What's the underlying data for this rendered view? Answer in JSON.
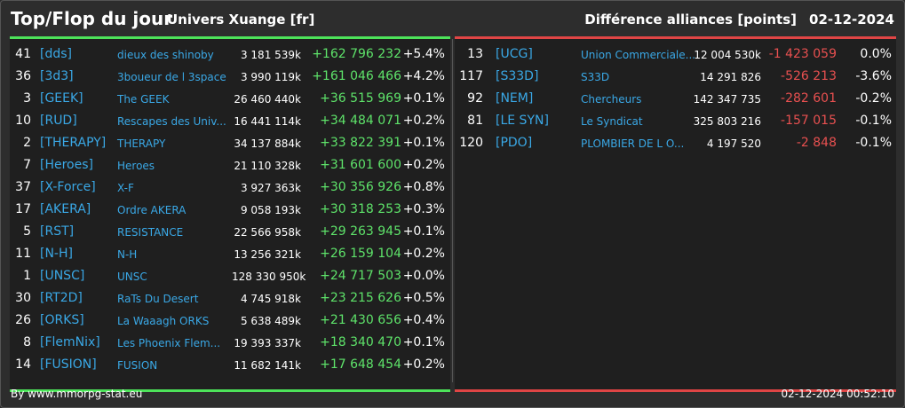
{
  "header": {
    "title": "Top/Flop du jour",
    "universe": "Univers Xuange [fr]",
    "metric": "Différence alliances [points]",
    "date": "02-12-2024"
  },
  "top": [
    {
      "rank": "41",
      "tag": "[dds]",
      "name": "dieux des shinoby",
      "points": "3 181 539k",
      "diff": "+162 796 232",
      "pct": "+5.4%"
    },
    {
      "rank": "36",
      "tag": "[3d3]",
      "name": "3boueur de l 3space",
      "points": "3 990 119k",
      "diff": "+161 046 466",
      "pct": "+4.2%"
    },
    {
      "rank": "3",
      "tag": "[GEEK]",
      "name": "The GEEK",
      "points": "26 460 440k",
      "diff": "+36 515 969",
      "pct": "+0.1%"
    },
    {
      "rank": "10",
      "tag": "[RUD]",
      "name": "Rescapes des Univ...",
      "points": "16 441 114k",
      "diff": "+34 484 071",
      "pct": "+0.2%"
    },
    {
      "rank": "2",
      "tag": "[THERAPY]",
      "name": "THERAPY",
      "points": "34 137 884k",
      "diff": "+33 822 391",
      "pct": "+0.1%"
    },
    {
      "rank": "7",
      "tag": "[Heroes]",
      "name": "Heroes",
      "points": "21 110 328k",
      "diff": "+31 601 600",
      "pct": "+0.2%"
    },
    {
      "rank": "37",
      "tag": "[X-Force]",
      "name": "X-F",
      "points": "3 927 363k",
      "diff": "+30 356 926",
      "pct": "+0.8%"
    },
    {
      "rank": "17",
      "tag": "[AKERA]",
      "name": "Ordre AKERA",
      "points": "9 058 193k",
      "diff": "+30 318 253",
      "pct": "+0.3%"
    },
    {
      "rank": "5",
      "tag": "[RST]",
      "name": "RESISTANCE",
      "points": "22 566 958k",
      "diff": "+29 263 945",
      "pct": "+0.1%"
    },
    {
      "rank": "11",
      "tag": "[N-H]",
      "name": "N-H",
      "points": "13 256 321k",
      "diff": "+26 159 104",
      "pct": "+0.2%"
    },
    {
      "rank": "1",
      "tag": "[UNSC]",
      "name": "UNSC",
      "points": "128 330 950k",
      "diff": "+24 717 503",
      "pct": "+0.0%"
    },
    {
      "rank": "30",
      "tag": "[RT2D]",
      "name": "RaTs Du Desert",
      "points": "4 745 918k",
      "diff": "+23 215 626",
      "pct": "+0.5%"
    },
    {
      "rank": "26",
      "tag": "[ORKS]",
      "name": "La Waaagh ORKS",
      "points": "5 638 489k",
      "diff": "+21 430 656",
      "pct": "+0.4%"
    },
    {
      "rank": "8",
      "tag": "[FlemNix]",
      "name": "Les Phoenix Flem...",
      "points": "19 393 337k",
      "diff": "+18 340 470",
      "pct": "+0.1%"
    },
    {
      "rank": "14",
      "tag": "[FUSION]",
      "name": "FUSION",
      "points": "11 682 141k",
      "diff": "+17 648 454",
      "pct": "+0.2%"
    }
  ],
  "flop": [
    {
      "rank": "13",
      "tag": "[UCG]",
      "name": "Union Commerciale...",
      "points": "12 004 530k",
      "diff": "-1 423 059",
      "pct": "0.0%"
    },
    {
      "rank": "117",
      "tag": "[S33D]",
      "name": "S33D",
      "points": "14 291 826",
      "diff": "-526 213",
      "pct": "-3.6%"
    },
    {
      "rank": "92",
      "tag": "[NEM]",
      "name": "Chercheurs",
      "points": "142 347 735",
      "diff": "-282 601",
      "pct": "-0.2%"
    },
    {
      "rank": "81",
      "tag": "[LE SYN]",
      "name": "Le Syndicat",
      "points": "325 803 216",
      "diff": "-157 015",
      "pct": "-0.1%"
    },
    {
      "rank": "120",
      "tag": "[PDO]",
      "name": "PLOMBIER DE L O...",
      "points": "4 197 520",
      "diff": "-2 848",
      "pct": "-0.1%"
    }
  ],
  "footer": {
    "source": "By www.mmorpg-stat.eu",
    "timestamp": "02-12-2024 00:52:10"
  },
  "colors": {
    "top_accent": "#4de35a",
    "flop_accent": "#e04545",
    "tag_link": "#3aa8e6",
    "positive": "#5ee36a",
    "negative": "#e85050"
  }
}
